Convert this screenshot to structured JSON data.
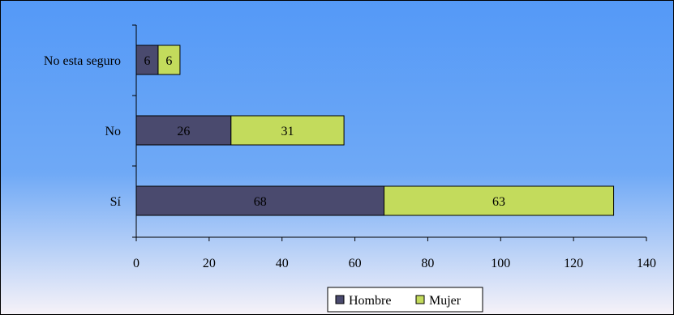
{
  "colors": {
    "hombre": "#4a4a6e",
    "mujer": "#c3db5c",
    "background_top": "#5499f7",
    "background_bottom": "#f6f2f8",
    "axis": "#000000"
  },
  "chart_data": {
    "type": "bar",
    "orientation": "horizontal",
    "stacked": true,
    "categories": [
      "No esta seguro",
      "No",
      "Sí"
    ],
    "series": [
      {
        "name": "Hombre",
        "values": [
          6,
          26,
          68
        ],
        "color": "#4a4a6e"
      },
      {
        "name": "Mujer",
        "values": [
          6,
          31,
          63
        ],
        "color": "#c3db5c"
      }
    ],
    "xlim": [
      0,
      140
    ],
    "xticks": [
      "0",
      "20",
      "40",
      "60",
      "80",
      "100",
      "120",
      "140"
    ],
    "grid": false,
    "legend_position": "bottom",
    "data_labels": true
  }
}
